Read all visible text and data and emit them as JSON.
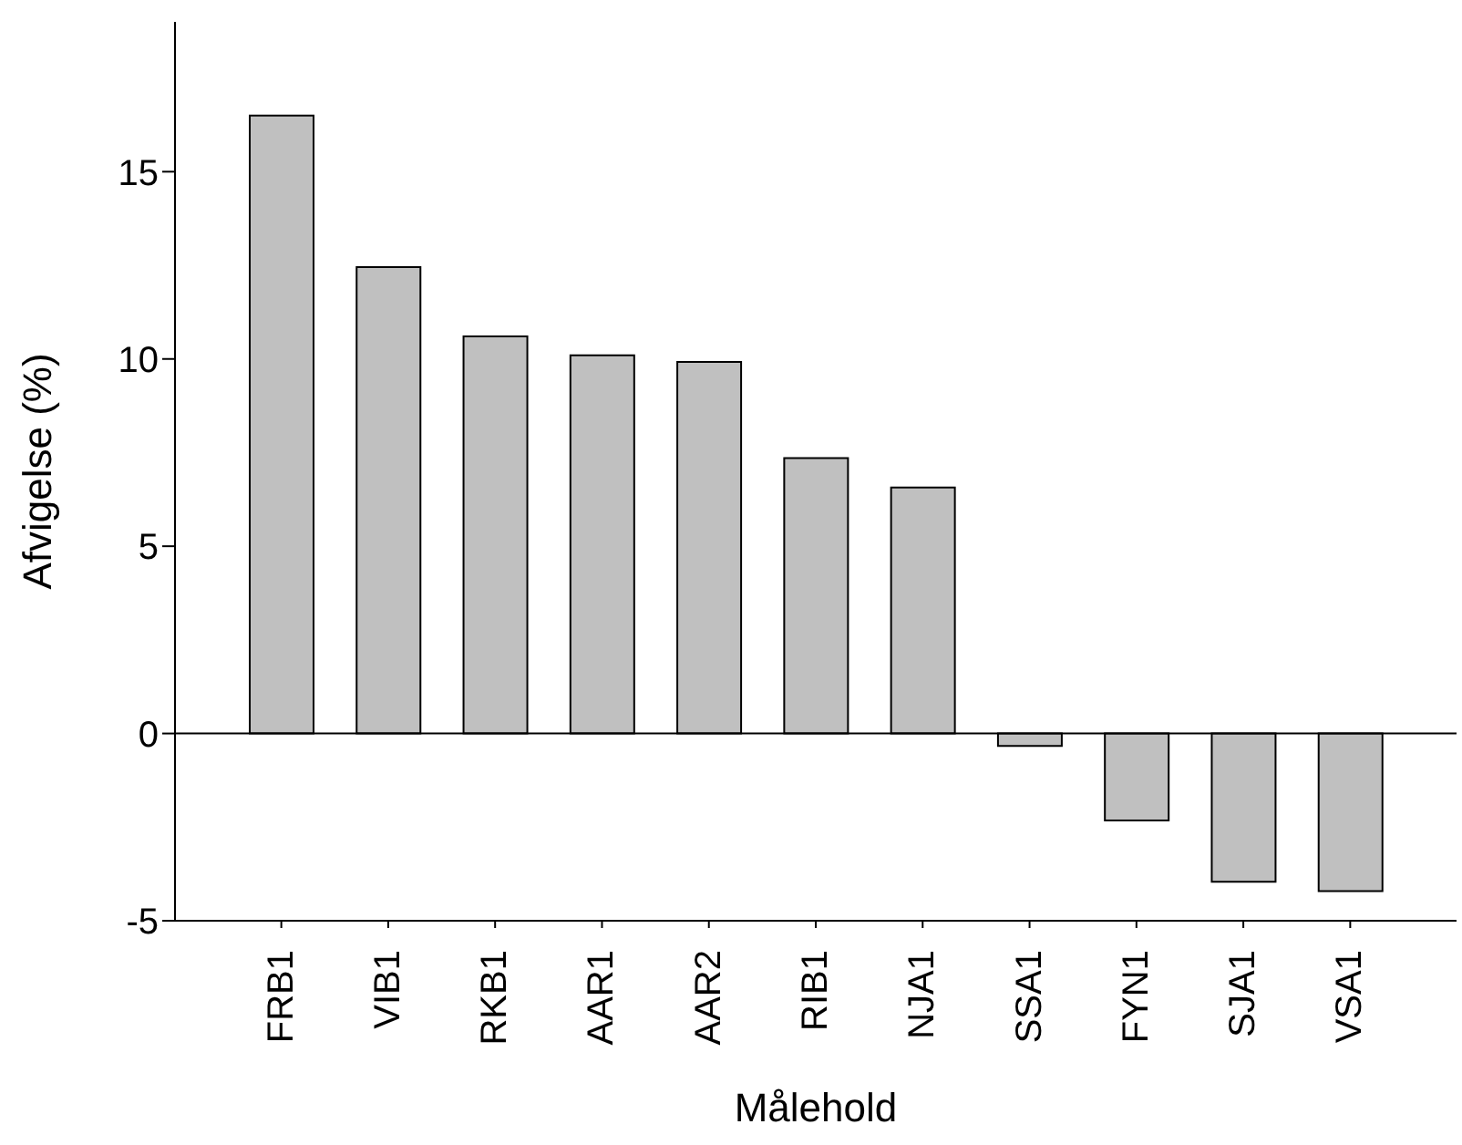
{
  "chart_data": {
    "type": "bar",
    "xlabel": "Målehold",
    "ylabel": "Afvigelse (%)",
    "categories": [
      "FRB1",
      "VIB1",
      "RKB1",
      "AAR1",
      "AAR2",
      "RIB1",
      "NJA1",
      "SSA1",
      "FYN1",
      "SJA1",
      "VSA1"
    ],
    "values": [
      16.5,
      12.45,
      10.6,
      10.1,
      9.92,
      7.35,
      6.57,
      -0.33,
      -2.32,
      -3.96,
      -4.21
    ],
    "color": "#c0c0c0",
    "ylim": [
      -5,
      19
    ],
    "yticks": [
      -5,
      0,
      5,
      10,
      15
    ],
    "ref_lines": [
      {
        "axis": "y",
        "value": 0,
        "color": "#000000"
      }
    ],
    "grid": false,
    "legend": false
  }
}
